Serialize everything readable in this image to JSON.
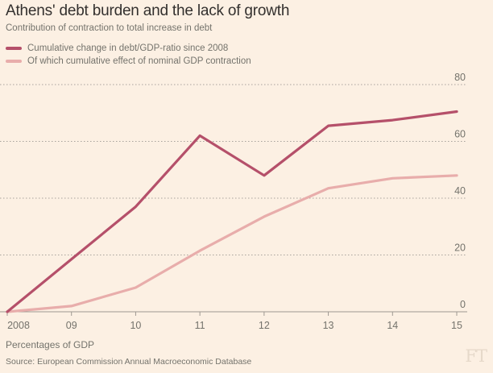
{
  "chart_data": {
    "type": "line",
    "title": "Athens' debt burden and the lack of growth",
    "subtitle": "Contribution of contraction to total increase in debt",
    "categories": [
      "2008",
      "09",
      "10",
      "11",
      "12",
      "13",
      "14",
      "15"
    ],
    "series": [
      {
        "name": "Cumulative change in debt/GDP-ratio since 2008",
        "color": "#b5506a",
        "values": [
          0,
          18.5,
          37,
          62,
          48,
          65.5,
          67.5,
          70.5
        ]
      },
      {
        "name": "Of which cumulative effect of nominal GDP contraction",
        "color": "#e8adab",
        "values": [
          0,
          2,
          8.5,
          21.5,
          33.5,
          43.5,
          47,
          48
        ]
      }
    ],
    "y_ticks": [
      0,
      20,
      40,
      60,
      80
    ],
    "ylim": [
      0,
      80
    ],
    "xlabel": "",
    "ylabel": "Percentages of GDP",
    "grid": true,
    "legend_placement": "top-left"
  },
  "units_label": "Percentages of GDP",
  "source": "Source: European Commission Annual Macroeconomic Database",
  "logo": "FT"
}
